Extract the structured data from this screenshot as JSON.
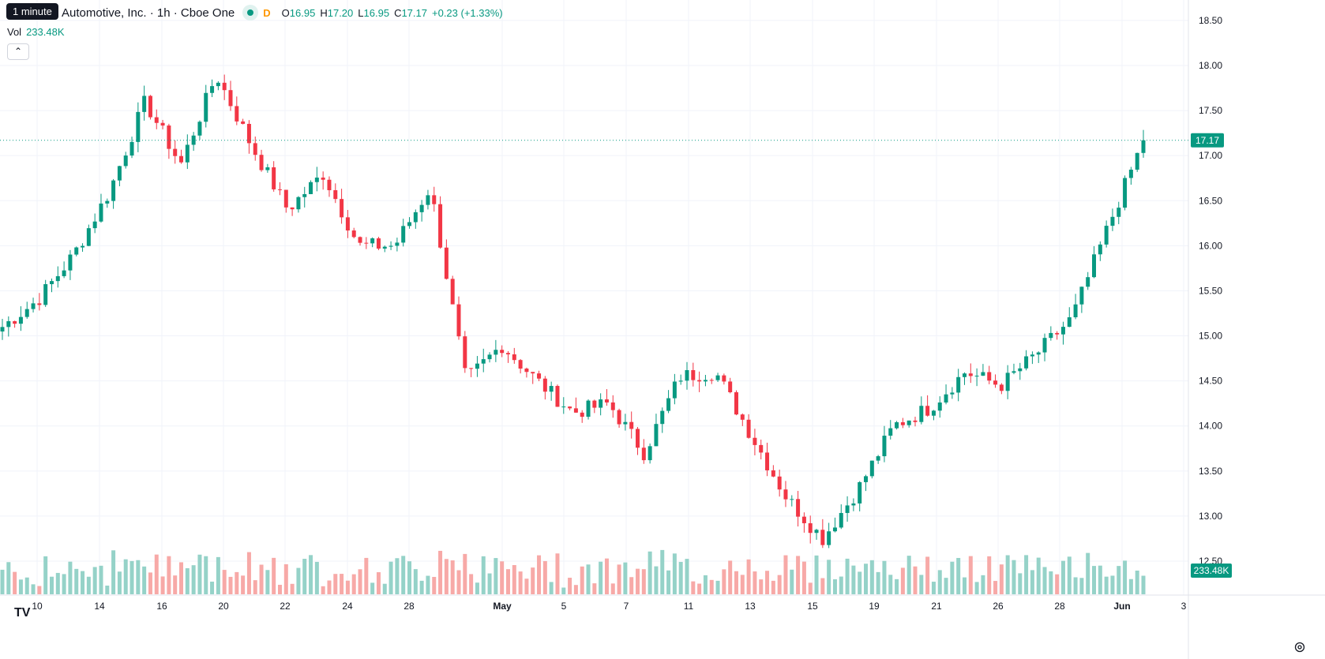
{
  "header": {
    "tooltip": "1 minute",
    "title": "Automotive, Inc. · 1h · Cboe One",
    "flag": "D",
    "ohlc": [
      {
        "k": "O",
        "v": "16.95"
      },
      {
        "k": "H",
        "v": "17.20"
      },
      {
        "k": "L",
        "v": "16.95"
      },
      {
        "k": "C",
        "v": "17.17"
      }
    ],
    "change": "+0.23 (+1.33%)",
    "vol_label": "Vol",
    "vol_value": "233.48K",
    "collapse_icon": "chevron-up-icon"
  },
  "badges": {
    "price": "17.17",
    "volume": "233.48K"
  },
  "colors": {
    "up": "#089981",
    "down": "#f23645",
    "up_vol": "#95d2c8",
    "down_vol": "#f7a9a7",
    "grid": "#f0f3fa"
  },
  "chart_data": {
    "type": "candlestick",
    "y_ticks": [
      "12.50",
      "13.00",
      "13.50",
      "14.00",
      "14.50",
      "15.00",
      "15.50",
      "16.00",
      "16.50",
      "17.00",
      "17.50",
      "18.00",
      "18.50"
    ],
    "ylim": [
      12.3,
      18.6
    ],
    "last_price": 17.17,
    "x_ticks": [
      "10",
      "14",
      "16",
      "20",
      "22",
      "24",
      "28",
      "May",
      "5",
      "7",
      "11",
      "13",
      "15",
      "19",
      "21",
      "26",
      "28",
      "Jun",
      "3"
    ],
    "key_points": [
      {
        "t": "Apr 9",
        "close": 15.1
      },
      {
        "t": "Apr 10",
        "close": 15.4
      },
      {
        "t": "Apr 14",
        "close": 15.9
      },
      {
        "t": "Apr 16",
        "close": 16.6
      },
      {
        "t": "Apr 17",
        "close": 17.6
      },
      {
        "t": "Apr 20",
        "close": 16.9
      },
      {
        "t": "Apr 22",
        "close": 17.9
      },
      {
        "t": "Apr 23",
        "close": 17.1
      },
      {
        "t": "Apr 24",
        "close": 16.4
      },
      {
        "t": "Apr 27",
        "close": 16.8
      },
      {
        "t": "Apr 28",
        "close": 16.0
      },
      {
        "t": "Apr 30",
        "close": 16.0
      },
      {
        "t": "May 1",
        "close": 16.65
      },
      {
        "t": "May 4",
        "close": 14.5
      },
      {
        "t": "May 5",
        "close": 14.9
      },
      {
        "t": "May 7",
        "close": 14.5
      },
      {
        "t": "May 8",
        "close": 14.15
      },
      {
        "t": "May 11",
        "close": 14.25
      },
      {
        "t": "May 12",
        "close": 13.7
      },
      {
        "t": "May 13",
        "close": 14.55
      },
      {
        "t": "May 14",
        "close": 14.6
      },
      {
        "t": "May 15",
        "close": 13.9
      },
      {
        "t": "May 18",
        "close": 13.2
      },
      {
        "t": "May 19",
        "close": 12.75
      },
      {
        "t": "May 20",
        "close": 13.3
      },
      {
        "t": "May 21",
        "close": 14.0
      },
      {
        "t": "May 22",
        "close": 14.2
      },
      {
        "t": "May 26",
        "close": 14.6
      },
      {
        "t": "May 27",
        "close": 14.45
      },
      {
        "t": "May 28",
        "close": 14.8
      },
      {
        "t": "May 29",
        "close": 15.2
      },
      {
        "t": "Jun 1",
        "close": 16.2
      },
      {
        "t": "Jun 2",
        "close": 17.17
      }
    ]
  }
}
